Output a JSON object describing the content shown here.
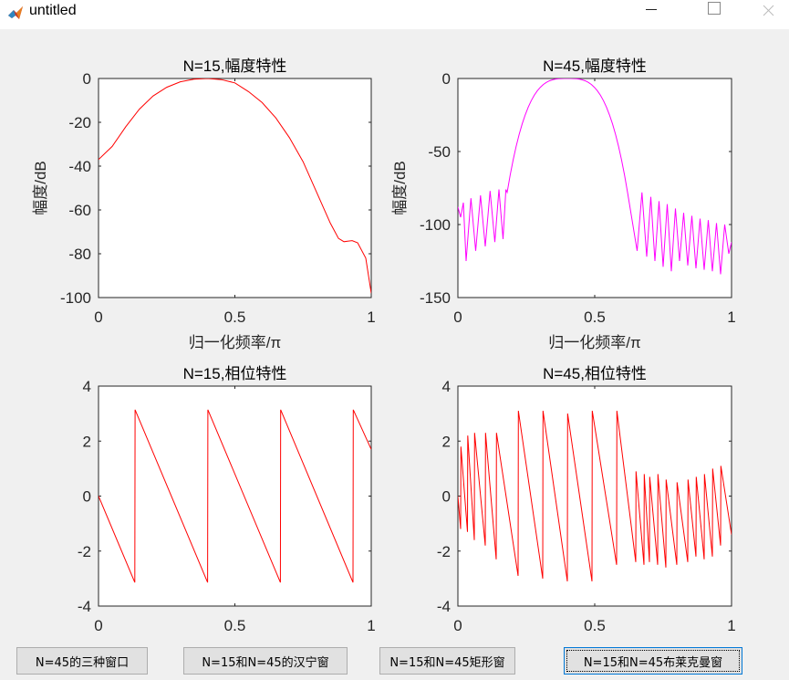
{
  "window": {
    "title": "untitled"
  },
  "colors": {
    "red": "#ff0000",
    "magenta": "#ff00ff"
  },
  "chart_data": [
    {
      "type": "line",
      "title": "N=15,幅度特性",
      "xlabel": "归一化频率/π",
      "ylabel": "幅度/dB",
      "xlim": [
        0,
        1
      ],
      "ylim": [
        -100,
        0
      ],
      "xticks": [
        "0",
        "0.5",
        "1"
      ],
      "yticks": [
        "0",
        "-20",
        "-40",
        "-60",
        "-80",
        "-100"
      ],
      "series": [
        {
          "color": "#ff0000",
          "x": [
            0,
            0.05,
            0.1,
            0.15,
            0.2,
            0.25,
            0.3,
            0.35,
            0.4,
            0.45,
            0.5,
            0.55,
            0.6,
            0.65,
            0.7,
            0.75,
            0.8,
            0.85,
            0.88,
            0.9,
            0.93,
            0.95,
            0.98,
            1.0
          ],
          "y": [
            -37,
            -31,
            -22,
            -14,
            -8,
            -4,
            -1.5,
            -0.3,
            0,
            -0.5,
            -2,
            -6,
            -11,
            -18,
            -27,
            -38,
            -52,
            -66,
            -73,
            -74.5,
            -74,
            -75,
            -82,
            -98
          ]
        }
      ]
    },
    {
      "type": "line",
      "title": "N=45,幅度特性",
      "xlabel": "归一化频率/π",
      "ylabel": "幅度/dB",
      "xlim": [
        0,
        1
      ],
      "ylim": [
        -150,
        0
      ],
      "xticks": [
        "0",
        "0.5",
        "1"
      ],
      "yticks": [
        "0",
        "-50",
        "-100",
        "-150"
      ],
      "series": [
        {
          "color": "#ff00ff",
          "passband": [
            0.18,
            0.62
          ],
          "sidelobes_left": {
            "nulls": [
              0.01,
              0.03,
              0.065,
              0.1,
              0.135,
              0.165
            ],
            "peaks": [
              -88,
              -85,
              -82,
              -80,
              -77,
              -76
            ],
            "depths": [
              -95,
              -125,
              -118,
              -115,
              -112,
              -110
            ]
          },
          "sidelobes_right": {
            "nulls": [
              0.655,
              0.69,
              0.72,
              0.75,
              0.78,
              0.81,
              0.84,
              0.87,
              0.9,
              0.93,
              0.96,
              0.99
            ],
            "peaks": [
              -76,
              -78,
              -81,
              -84,
              -86,
              -89,
              -92,
              -94,
              -96,
              -97,
              -99,
              -100
            ],
            "depths": [
              -118,
              -122,
              -125,
              -129,
              -132,
              -125,
              -128,
              -130,
              -131,
              -132,
              -134,
              -120
            ]
          }
        }
      ]
    },
    {
      "type": "line",
      "title": "N=15,相位特性",
      "xlim": [
        0,
        1
      ],
      "ylim": [
        -4,
        4
      ],
      "xticks": [
        "0",
        "0.5",
        "1"
      ],
      "yticks": [
        "4",
        "2",
        "0",
        "-2",
        "-4"
      ],
      "series": [
        {
          "color": "#ff0000",
          "x": [
            0,
            0.133,
            0.134,
            0.4,
            0.401,
            0.667,
            0.668,
            0.933,
            0.934,
            1.0
          ],
          "y": [
            0,
            -3.14,
            3.14,
            -3.14,
            3.14,
            -3.14,
            3.14,
            -3.14,
            3.14,
            1.7
          ]
        }
      ]
    },
    {
      "type": "line",
      "title": "N=45,相位特性",
      "xlim": [
        0,
        1
      ],
      "ylim": [
        -4,
        4
      ],
      "xticks": [
        "0",
        "0.5",
        "1"
      ],
      "yticks": [
        "4",
        "2",
        "0",
        "-2",
        "-4"
      ],
      "series": [
        {
          "color": "#ff0000",
          "x": [
            0,
            0.01,
            0.011,
            0.035,
            0.036,
            0.06,
            0.061,
            0.1,
            0.101,
            0.14,
            0.141,
            0.22,
            0.221,
            0.31,
            0.311,
            0.4,
            0.401,
            0.49,
            0.491,
            0.58,
            0.581,
            0.65,
            0.651,
            0.68,
            0.681,
            0.7,
            0.701,
            0.73,
            0.731,
            0.76,
            0.761,
            0.8,
            0.801,
            0.84,
            0.841,
            0.87,
            0.871,
            0.9,
            0.901,
            0.93,
            0.931,
            0.96,
            0.961,
            1.0
          ],
          "y": [
            0,
            -1.2,
            1.8,
            -1.3,
            2.2,
            -1.6,
            2.3,
            -1.8,
            2.3,
            -2.3,
            2.3,
            -2.9,
            3.1,
            -3.0,
            3.1,
            -3.1,
            3.0,
            -3.1,
            3.1,
            -2.5,
            3.1,
            -2.4,
            0.9,
            -2.5,
            0.8,
            -2.4,
            0.7,
            -2.5,
            0.8,
            -2.6,
            0.6,
            -2.5,
            0.5,
            -2.4,
            0.6,
            -2.2,
            0.7,
            -2.3,
            0.8,
            -2.2,
            1.0,
            -1.8,
            1.1,
            -1.4
          ]
        }
      ]
    }
  ],
  "buttons": [
    {
      "label": "N=45的三种窗口"
    },
    {
      "label": "N=15和N=45的汉宁窗"
    },
    {
      "label": "N=15和N=45矩形窗"
    },
    {
      "label": "N=15和N=45布莱克曼窗"
    }
  ]
}
